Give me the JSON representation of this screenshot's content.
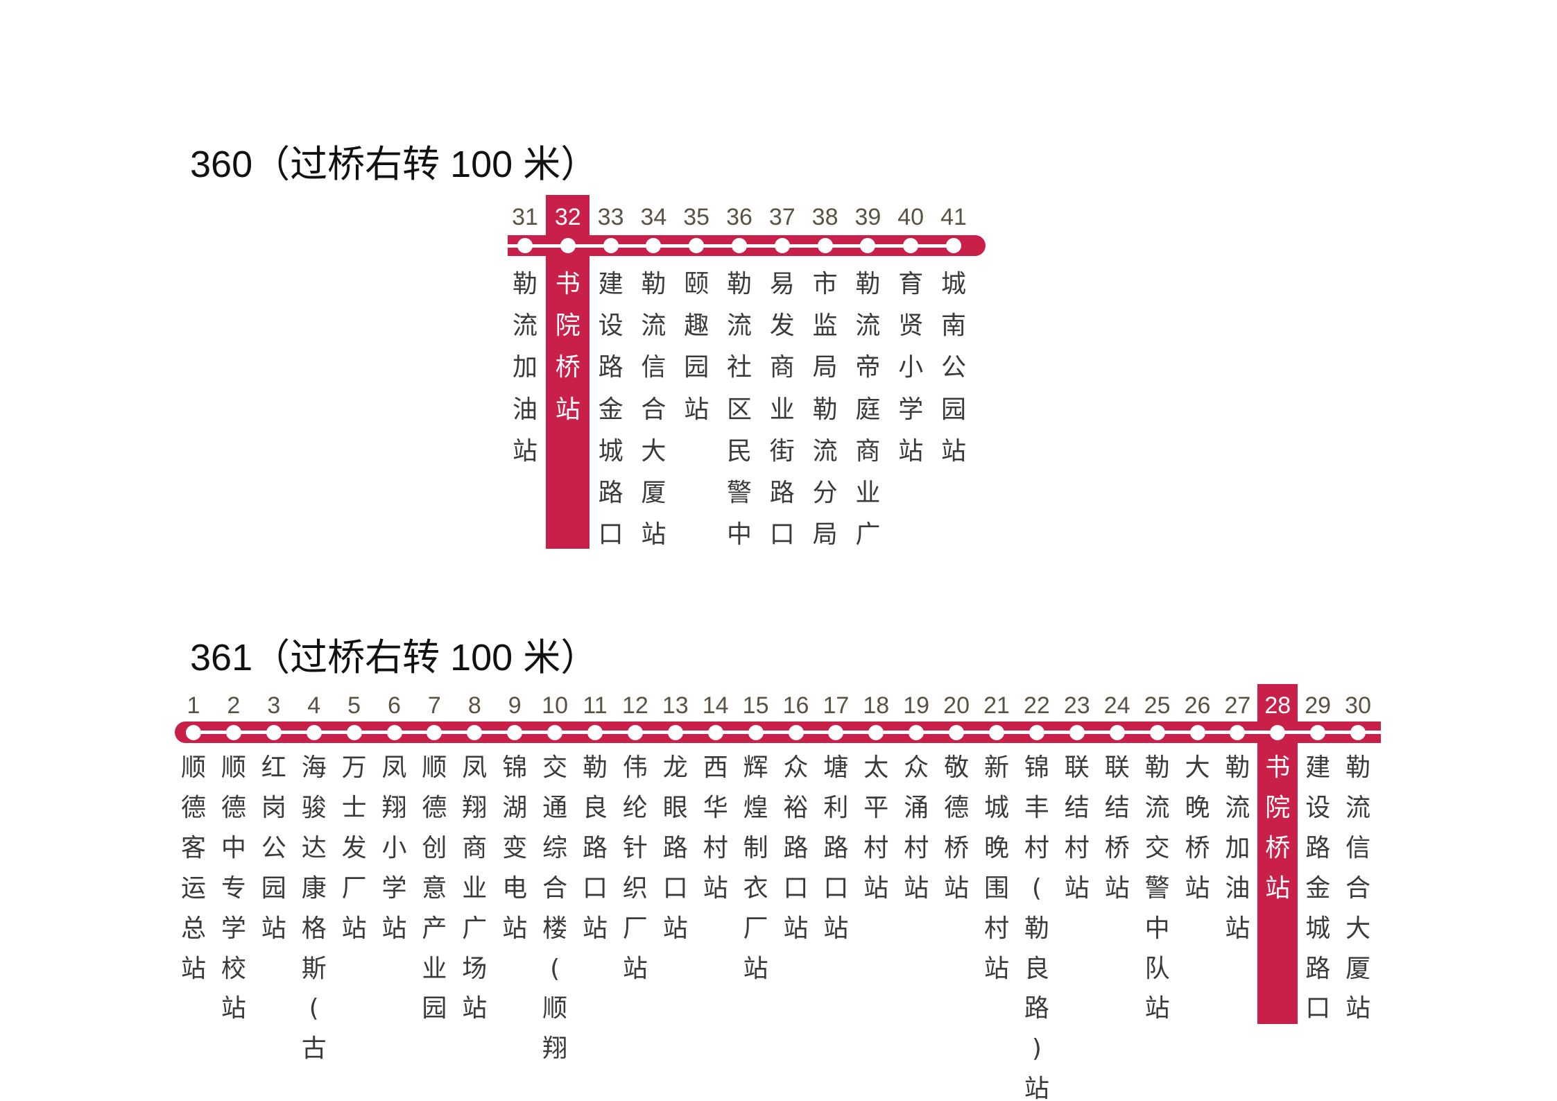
{
  "colors": {
    "line": "#c9204a",
    "text": "#3a3a3a",
    "number": "#5a5244",
    "highlight_text": "#ffffff"
  },
  "routes": [
    {
      "title": "360（过桥右转 100 米）",
      "current_station_number": "32",
      "stations": [
        {
          "num": "31",
          "name": "勒流加油站"
        },
        {
          "num": "32",
          "name": "书院桥站"
        },
        {
          "num": "33",
          "name": "建设路金城路口"
        },
        {
          "num": "34",
          "name": "勒流信合大厦站"
        },
        {
          "num": "35",
          "name": "颐趣园站"
        },
        {
          "num": "36",
          "name": "勒流社区民警中"
        },
        {
          "num": "37",
          "name": "易发商业街路口"
        },
        {
          "num": "38",
          "name": "市监局勒流分局"
        },
        {
          "num": "39",
          "name": "勒流帝庭商业广"
        },
        {
          "num": "40",
          "name": "育贤小学站"
        },
        {
          "num": "41",
          "name": "城南公园站"
        }
      ]
    },
    {
      "title": "361（过桥右转 100 米）",
      "current_station_number": "28",
      "stations": [
        {
          "num": "1",
          "name": "顺德客运总站"
        },
        {
          "num": "2",
          "name": "顺德中专学校站"
        },
        {
          "num": "3",
          "name": "红岗公园站"
        },
        {
          "num": "4",
          "name": "海骏达康格斯(古"
        },
        {
          "num": "5",
          "name": "万士发厂站"
        },
        {
          "num": "6",
          "name": "凤翔小学站"
        },
        {
          "num": "7",
          "name": "顺德创意产业园"
        },
        {
          "num": "8",
          "name": "凤翔商业广场站"
        },
        {
          "num": "9",
          "name": "锦湖变电站"
        },
        {
          "num": "10",
          "name": "交通综合楼(顺翔"
        },
        {
          "num": "11",
          "name": "勒良路口站"
        },
        {
          "num": "12",
          "name": "伟纶针织厂站"
        },
        {
          "num": "13",
          "name": "龙眼路口站"
        },
        {
          "num": "14",
          "name": "西华村站"
        },
        {
          "num": "15",
          "name": "辉煌制衣厂站"
        },
        {
          "num": "16",
          "name": "众裕路口站"
        },
        {
          "num": "17",
          "name": "塘利路口站"
        },
        {
          "num": "18",
          "name": "太平村站"
        },
        {
          "num": "19",
          "name": "众涌村站"
        },
        {
          "num": "20",
          "name": "敬德桥站"
        },
        {
          "num": "21",
          "name": "新城晚围村站"
        },
        {
          "num": "22",
          "name": "锦丰村(勒良路)站"
        },
        {
          "num": "23",
          "name": "联结村站"
        },
        {
          "num": "24",
          "name": "联结桥站"
        },
        {
          "num": "25",
          "name": "勒流交警中队站"
        },
        {
          "num": "26",
          "name": "大晚桥站"
        },
        {
          "num": "27",
          "name": "勒流加油站"
        },
        {
          "num": "28",
          "name": "书院桥站"
        },
        {
          "num": "29",
          "name": "建设路金城路口"
        },
        {
          "num": "30",
          "name": "勒流信合大厦站"
        }
      ]
    }
  ]
}
